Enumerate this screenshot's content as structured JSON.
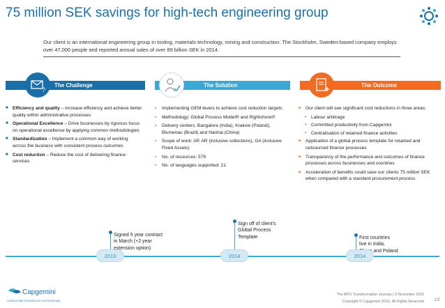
{
  "slide": {
    "title": "75 million SEK savings for high-tech engineering group",
    "intro": "Our client is an international engineering group in tooling, materials technology, mining and construction. The Stockholm, Sweden-based company employs over 47,000 people and reported annual sales of over 89 billion SEK in 2014."
  },
  "sections": {
    "challenge": {
      "label": "The Challenge",
      "items": [
        {
          "bold": "Efficiency and quality",
          "text": " – increase efficiency and achieve better quality within administrative processes"
        },
        {
          "bold": "Operational Excellence",
          "text": " –  Drive businesses by rigorous focus on operational excellence by applying common methodologies"
        },
        {
          "bold": "Standardization",
          "text": " – Implement a common way of working across the business with consistent process outcomes"
        },
        {
          "bold": "Cost reduction",
          "text": " – Reduce the cost of delivering finance services"
        }
      ]
    },
    "solution": {
      "label": "The Solution",
      "items": [
        "Implementing GEM levers to achieve cost reduction targets",
        "Methodology: Global Process Model® and Rightshore®",
        "Delivery centers: Bangalore (India), Krakow (Poland), Blumenau (Brazil) and Nanhai (China)",
        "Scope of work: AP, AR (inclusive collections), GA (inclusive Fixed Assets)",
        "No. of resources: 579",
        "No. of languages supported: 21"
      ]
    },
    "outcome": {
      "label": "The Outcome",
      "lead": "Our client will see significant cost reductions in three areas:",
      "sub": [
        "Labour arbitrage",
        "Committed productivity from Capgemini",
        "Centralisation of retained finance activities"
      ],
      "items": [
        "Application of a global process template for retained and outsourced finance processes",
        "Transparency of the performance and outcomes of finance processes across businesses and countries",
        "Acceleration of benefits could save our clients 75 million SEK when compared with a standard procurement process"
      ]
    }
  },
  "timeline": {
    "years": [
      "2013",
      "2014",
      "2014"
    ],
    "milestones": [
      "Signed 5 year contract in March (+2 year extension option)",
      "Sign off of client’s Global Process Template",
      "First countries live in India, China and Poland"
    ]
  },
  "footer": {
    "line1": "The BPO Transformation Journey | 5 November 2015",
    "line2": "Copyright © Capgemini 2015. All Rights Reserved",
    "page": "13",
    "brand": "Capgemini",
    "tagline": "CONSULTING.TECHNOLOGY.OUTSOURCING"
  },
  "colors": {
    "challenge": "#1a6fa8",
    "solution": "#3aa7d6",
    "outcome": "#f26b21",
    "title": "#1a6fa8"
  },
  "icons": {
    "challenge": "envelope-question-icon",
    "solution": "person-check-icon",
    "outcome": "clipboard-plus-icon",
    "logo": "gear-dots-logo-icon"
  }
}
